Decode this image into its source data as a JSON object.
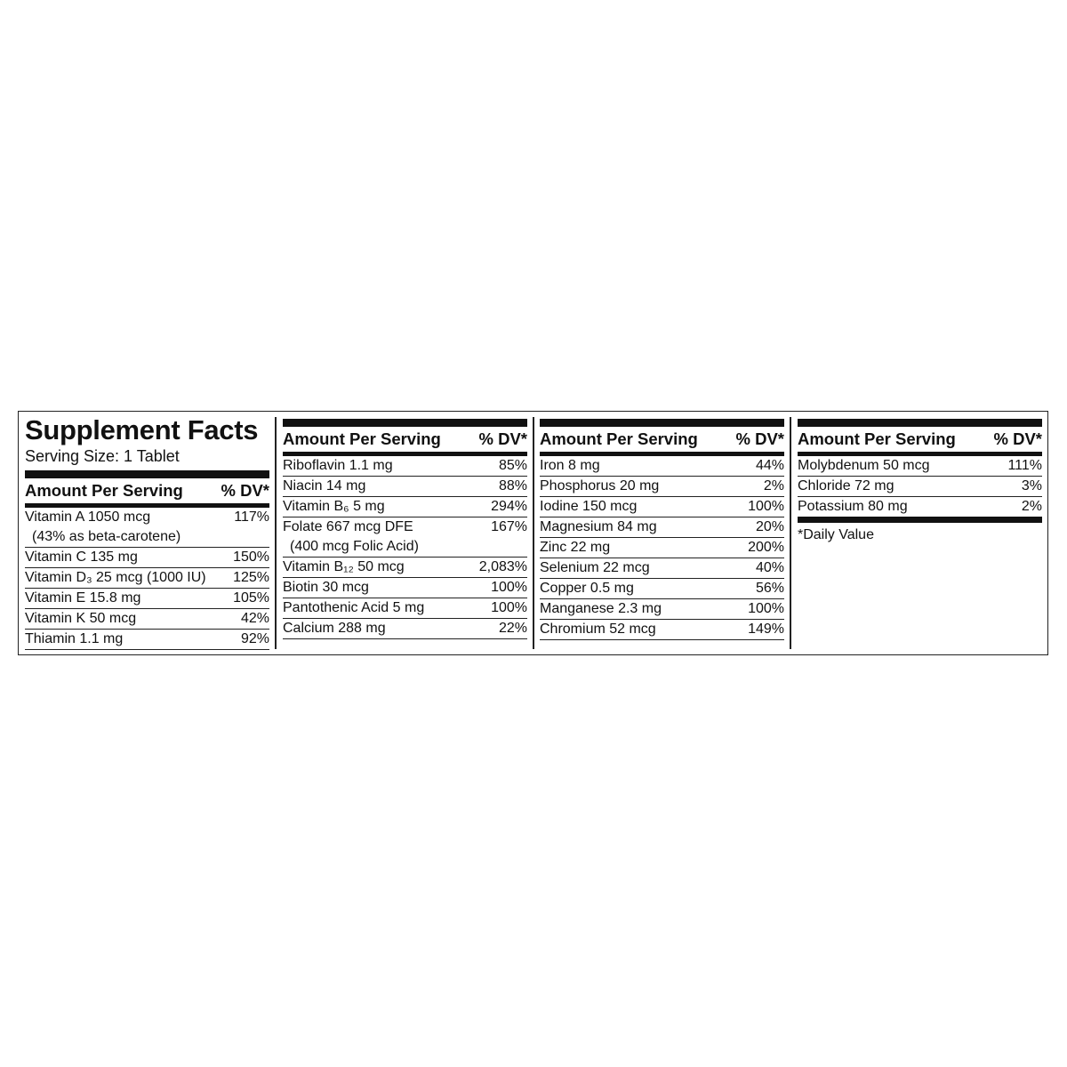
{
  "title": "Supplement Facts",
  "serving_size": "Serving Size: 1 Tablet",
  "footnote": "*Daily Value",
  "columns": [
    {
      "header": {
        "amount": "Amount Per Serving",
        "dv": "% DV*"
      },
      "rows": [
        {
          "amount": "Vitamin A 1050 mcg",
          "note": "(43% as beta-carotene)",
          "dv": "117%"
        },
        {
          "amount": "Vitamin C 135 mg",
          "dv": "150%"
        },
        {
          "amount": "Vitamin D₃ 25 mcg (1000 IU)",
          "dv": "125%"
        },
        {
          "amount": "Vitamin E  15.8 mg",
          "dv": "105%"
        },
        {
          "amount": "Vitamin K 50 mcg",
          "dv": "42%"
        },
        {
          "amount": "Thiamin 1.1 mg",
          "dv": "92%"
        }
      ]
    },
    {
      "header": {
        "amount": "Amount Per Serving",
        "dv": "% DV*"
      },
      "rows": [
        {
          "amount": "Riboflavin 1.1 mg",
          "dv": "85%"
        },
        {
          "amount": "Niacin 14 mg",
          "dv": "88%"
        },
        {
          "amount": "Vitamin B₆ 5 mg",
          "dv": "294%"
        },
        {
          "amount": "Folate 667 mcg DFE",
          "note": "(400 mcg Folic Acid)",
          "dv": "167%"
        },
        {
          "amount": "Vitamin B₁₂ 50 mcg",
          "dv": "2,083%"
        },
        {
          "amount": "Biotin 30 mcg",
          "dv": "100%"
        },
        {
          "amount": "Pantothenic Acid 5 mg",
          "dv": "100%"
        },
        {
          "amount": "Calcium 288 mg",
          "dv": "22%"
        }
      ]
    },
    {
      "header": {
        "amount": "Amount Per Serving",
        "dv": "% DV*"
      },
      "rows": [
        {
          "amount": "Iron 8 mg",
          "dv": "44%"
        },
        {
          "amount": "Phosphorus 20 mg",
          "dv": "2%"
        },
        {
          "amount": "Iodine 150 mcg",
          "dv": "100%"
        },
        {
          "amount": "Magnesium 84 mg",
          "dv": "20%"
        },
        {
          "amount": "Zinc 22 mg",
          "dv": "200%"
        },
        {
          "amount": "Selenium 22 mcg",
          "dv": "40%"
        },
        {
          "amount": "Copper 0.5 mg",
          "dv": "56%"
        },
        {
          "amount": "Manganese 2.3 mg",
          "dv": "100%"
        },
        {
          "amount": "Chromium 52 mcg",
          "dv": "149%"
        }
      ]
    },
    {
      "header": {
        "amount": "Amount Per Serving",
        "dv": "% DV*"
      },
      "rows": [
        {
          "amount": "Molybdenum 50 mcg",
          "dv": "111%"
        },
        {
          "amount": "Chloride 72 mg",
          "dv": "3%"
        },
        {
          "amount": "Potassium 80 mg",
          "dv": "2%"
        }
      ]
    }
  ]
}
